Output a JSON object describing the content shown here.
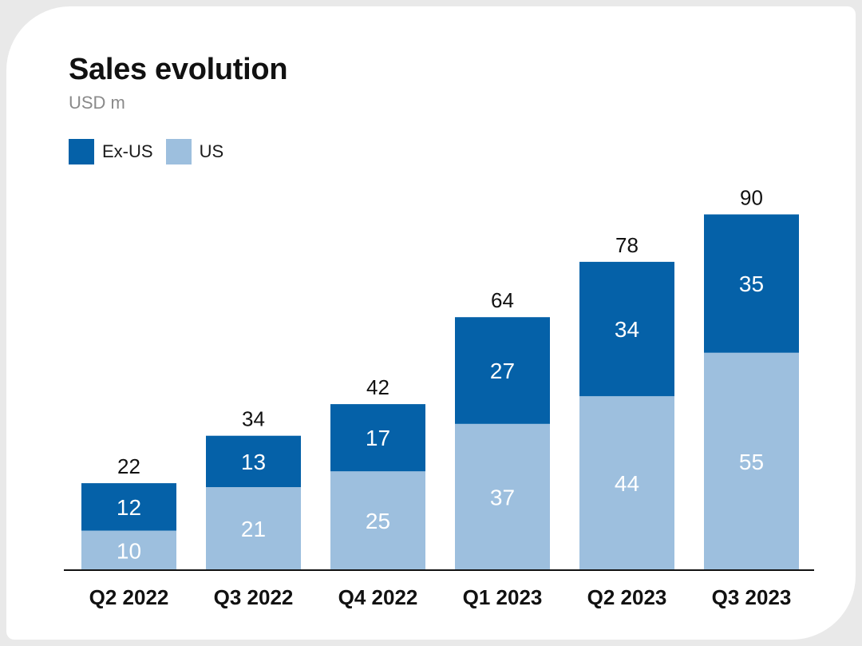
{
  "colors": {
    "ex_us": "#0561a8",
    "us": "#9dbfde",
    "axis": "#111111",
    "text": "#111111",
    "label_on_bar": "#ffffff"
  },
  "chart_data": {
    "type": "bar",
    "stacked": true,
    "title": "Sales evolution",
    "subtitle": "USD m",
    "categories": [
      "Q2 2022",
      "Q3 2022",
      "Q4 2022",
      "Q1 2023",
      "Q2 2023",
      "Q3 2023"
    ],
    "series": [
      {
        "name": "US",
        "values": [
          10,
          21,
          25,
          37,
          44,
          55
        ]
      },
      {
        "name": "Ex-US",
        "values": [
          12,
          13,
          17,
          27,
          34,
          35
        ]
      }
    ],
    "totals": [
      22,
      34,
      42,
      64,
      78,
      90
    ],
    "legend": [
      "Ex-US",
      "US"
    ],
    "legend_position": "top-left",
    "grid": false,
    "ylim": [
      0,
      100
    ]
  }
}
